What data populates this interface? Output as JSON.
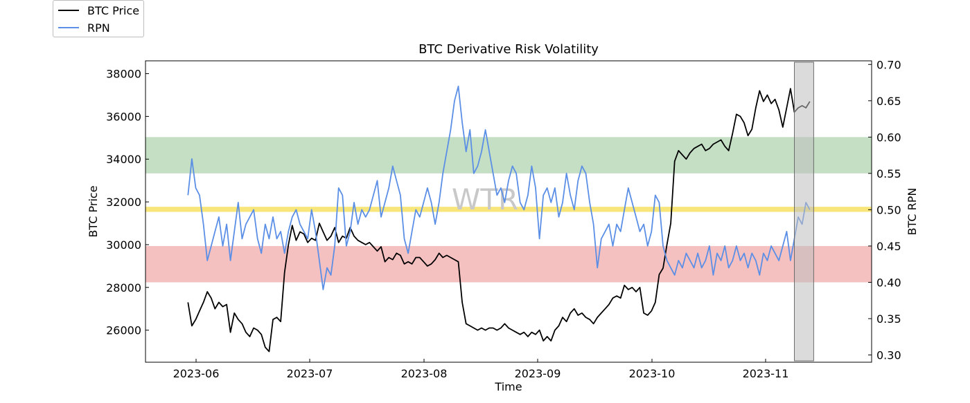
{
  "chart_data": {
    "type": "line",
    "title": "BTC Derivative Risk Volatility",
    "xlabel": "Time",
    "ylabel_left": "BTC Price",
    "ylabel_right": "BTC RPN",
    "watermark": "WTR",
    "x_ticks": [
      "2023-06",
      "2023-07",
      "2023-08",
      "2023-09",
      "2023-10",
      "2023-11"
    ],
    "x_range": [
      -11,
      177
    ],
    "left_ylim": [
      24500,
      38600
    ],
    "left_ticks": [
      26000,
      28000,
      30000,
      32000,
      34000,
      36000,
      38000
    ],
    "right_ylim": [
      0.29,
      0.705
    ],
    "right_ticks": [
      "0.30",
      "0.35",
      "0.40",
      "0.45",
      "0.50",
      "0.55",
      "0.60",
      "0.65",
      "0.70"
    ],
    "bands": [
      {
        "name": "green-zone",
        "from": 0.55,
        "to": 0.6,
        "color": "#c5dfc5"
      },
      {
        "name": "yellow-line",
        "from": 0.497,
        "to": 0.504,
        "color": "#f8e67a"
      },
      {
        "name": "red-zone",
        "from": 0.4,
        "to": 0.45,
        "color": "#f5c0c0"
      }
    ],
    "highlight": {
      "from_day": 157,
      "to_day": 162,
      "color": "#bdbdbd"
    },
    "series": [
      {
        "name": "BTC Price",
        "color": "#000000",
        "axis": "left",
        "x": [
          0,
          1,
          2,
          3,
          4,
          5,
          6,
          7,
          8,
          9,
          10,
          11,
          12,
          13,
          14,
          15,
          16,
          17,
          18,
          19,
          20,
          21,
          22,
          23,
          24,
          25,
          26,
          27,
          28,
          29,
          30,
          31,
          32,
          33,
          34,
          35,
          36,
          37,
          38,
          39,
          40,
          41,
          42,
          43,
          44,
          45,
          46,
          47,
          48,
          49,
          50,
          51,
          52,
          53,
          54,
          55,
          56,
          57,
          58,
          59,
          60,
          61,
          62,
          63,
          64,
          65,
          66,
          67,
          68,
          69,
          70,
          71,
          72,
          73,
          74,
          75,
          76,
          77,
          78,
          79,
          80,
          81,
          82,
          83,
          84,
          85,
          86,
          87,
          88,
          89,
          90,
          91,
          92,
          93,
          94,
          95,
          96,
          97,
          98,
          99,
          100,
          101,
          102,
          103,
          104,
          105,
          106,
          107,
          108,
          109,
          110,
          111,
          112,
          113,
          114,
          115,
          116,
          117,
          118,
          119,
          120,
          121,
          122,
          123,
          124,
          125,
          126,
          127,
          128,
          129,
          130,
          131,
          132,
          133,
          134,
          135,
          136,
          137,
          138,
          139,
          140,
          141,
          142,
          143,
          144,
          145,
          146,
          147,
          148,
          149,
          150,
          151,
          152,
          153,
          154,
          155,
          156,
          157,
          158,
          159,
          160,
          161
        ],
        "values": [
          27300,
          26200,
          26500,
          26900,
          27300,
          27800,
          27500,
          27000,
          27300,
          27100,
          27200,
          25900,
          26800,
          26500,
          26300,
          25900,
          25700,
          26100,
          26000,
          25800,
          25200,
          25000,
          26500,
          26600,
          26400,
          28700,
          30000,
          30900,
          30200,
          30600,
          30500,
          30100,
          30300,
          30200,
          31000,
          30600,
          30200,
          30400,
          30800,
          30100,
          30400,
          30300,
          30800,
          30400,
          30200,
          30100,
          30000,
          30100,
          29900,
          29700,
          29900,
          29200,
          29400,
          29300,
          29600,
          29500,
          29100,
          29200,
          29100,
          29400,
          29400,
          29200,
          29000,
          29100,
          29300,
          29600,
          29400,
          29500,
          29400,
          29300,
          29200,
          27300,
          26300,
          26200,
          26100,
          26000,
          26100,
          26000,
          26100,
          26100,
          26000,
          26100,
          26300,
          26100,
          26000,
          25900,
          25800,
          25900,
          25700,
          25900,
          25800,
          26000,
          25500,
          25700,
          25500,
          26000,
          26200,
          26600,
          26400,
          26800,
          27000,
          26700,
          26800,
          26600,
          26500,
          26300,
          26600,
          26800,
          27000,
          27200,
          27500,
          27600,
          27500,
          28100,
          27900,
          28000,
          27800,
          28000,
          26800,
          26700,
          26900,
          27300,
          28600,
          28900,
          30000,
          31000,
          33900,
          34400,
          34200,
          34000,
          34300,
          34500,
          34600,
          34700,
          34400,
          34500,
          34700,
          34800,
          34900,
          34600,
          34400,
          35200,
          36100,
          36000,
          35700,
          35100,
          35400,
          36400,
          37200,
          36700,
          37000,
          36600,
          36800,
          36300,
          35500,
          36400,
          37300,
          36200,
          36400,
          36500,
          36400,
          36700
        ]
      },
      {
        "name": "RPN",
        "color": "#5b8fe6",
        "axis": "right",
        "x": [
          0,
          1,
          2,
          3,
          4,
          5,
          6,
          7,
          8,
          9,
          10,
          11,
          12,
          13,
          14,
          15,
          16,
          17,
          18,
          19,
          20,
          21,
          22,
          23,
          24,
          25,
          26,
          27,
          28,
          29,
          30,
          31,
          32,
          33,
          34,
          35,
          36,
          37,
          38,
          39,
          40,
          41,
          42,
          43,
          44,
          45,
          46,
          47,
          48,
          49,
          50,
          51,
          52,
          53,
          54,
          55,
          56,
          57,
          58,
          59,
          60,
          61,
          62,
          63,
          64,
          65,
          66,
          67,
          68,
          69,
          70,
          71,
          72,
          73,
          74,
          75,
          76,
          77,
          78,
          79,
          80,
          81,
          82,
          83,
          84,
          85,
          86,
          87,
          88,
          89,
          90,
          91,
          92,
          93,
          94,
          95,
          96,
          97,
          98,
          99,
          100,
          101,
          102,
          103,
          104,
          105,
          106,
          107,
          108,
          109,
          110,
          111,
          112,
          113,
          114,
          115,
          116,
          117,
          118,
          119,
          120,
          121,
          122,
          123,
          124,
          125,
          126,
          127,
          128,
          129,
          130,
          131,
          132,
          133,
          134,
          135,
          136,
          137,
          138,
          139,
          140,
          141,
          142,
          143,
          144,
          145,
          146,
          147,
          148,
          149,
          150,
          151,
          152,
          153,
          154,
          155,
          156,
          157,
          158,
          159,
          160,
          161
        ],
        "values": [
          0.52,
          0.57,
          0.53,
          0.52,
          0.48,
          0.43,
          0.45,
          0.47,
          0.49,
          0.45,
          0.48,
          0.43,
          0.47,
          0.51,
          0.46,
          0.48,
          0.49,
          0.5,
          0.46,
          0.44,
          0.48,
          0.46,
          0.49,
          0.46,
          0.47,
          0.44,
          0.47,
          0.49,
          0.5,
          0.48,
          0.47,
          0.46,
          0.5,
          0.47,
          0.43,
          0.39,
          0.42,
          0.41,
          0.45,
          0.53,
          0.52,
          0.45,
          0.47,
          0.51,
          0.48,
          0.5,
          0.49,
          0.5,
          0.52,
          0.54,
          0.49,
          0.51,
          0.53,
          0.56,
          0.54,
          0.52,
          0.46,
          0.44,
          0.47,
          0.5,
          0.49,
          0.51,
          0.53,
          0.51,
          0.48,
          0.51,
          0.55,
          0.58,
          0.61,
          0.65,
          0.67,
          0.62,
          0.58,
          0.61,
          0.55,
          0.56,
          0.58,
          0.61,
          0.58,
          0.55,
          0.52,
          0.53,
          0.51,
          0.54,
          0.56,
          0.55,
          0.51,
          0.5,
          0.52,
          0.56,
          0.53,
          0.46,
          0.52,
          0.53,
          0.51,
          0.53,
          0.49,
          0.51,
          0.55,
          0.52,
          0.5,
          0.54,
          0.56,
          0.55,
          0.51,
          0.48,
          0.42,
          0.46,
          0.47,
          0.48,
          0.45,
          0.48,
          0.47,
          0.5,
          0.53,
          0.51,
          0.49,
          0.47,
          0.48,
          0.45,
          0.47,
          0.52,
          0.51,
          0.45,
          0.43,
          0.42,
          0.41,
          0.43,
          0.42,
          0.44,
          0.43,
          0.42,
          0.44,
          0.42,
          0.43,
          0.45,
          0.41,
          0.44,
          0.43,
          0.45,
          0.42,
          0.43,
          0.45,
          0.43,
          0.44,
          0.42,
          0.44,
          0.43,
          0.41,
          0.44,
          0.43,
          0.45,
          0.44,
          0.43,
          0.45,
          0.47,
          0.43,
          0.46,
          0.49,
          0.48,
          0.51,
          0.5
        ]
      }
    ]
  },
  "legend": {
    "items": [
      {
        "label": "BTC Price",
        "color": "#000000"
      },
      {
        "label": "RPN",
        "color": "#5b8fe6"
      }
    ]
  }
}
